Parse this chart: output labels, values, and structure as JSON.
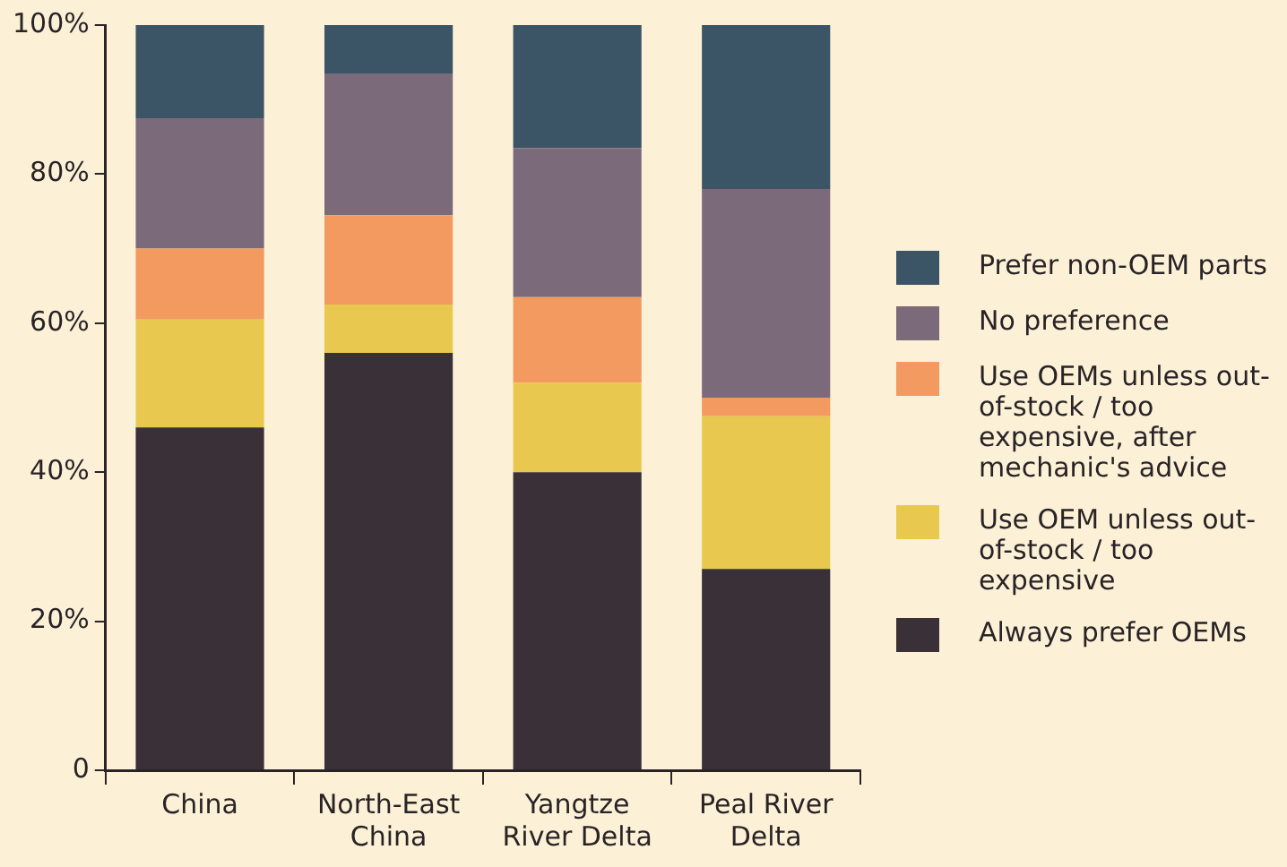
{
  "chart_data": {
    "type": "bar",
    "stacked": true,
    "categories": [
      "China",
      "North-East China",
      "Yangtze River Delta",
      "Peal River Delta"
    ],
    "series": [
      {
        "name": "Always prefer OEMs",
        "color": "#3a3038",
        "values": [
          46,
          56,
          40,
          27
        ]
      },
      {
        "name": "Use OEM unless out-of-stock / too expensive",
        "color": "#e8c84f",
        "values": [
          14.5,
          6.5,
          12,
          20.5
        ]
      },
      {
        "name": "Use OEMs unless out-of-stock / too expensive, after mechanic's advice",
        "color": "#f29a60",
        "values": [
          9.5,
          12,
          11.5,
          2.5
        ]
      },
      {
        "name": "No preference",
        "color": "#7b6b7a",
        "values": [
          17.5,
          19,
          20,
          28
        ]
      },
      {
        "name": "Prefer non-OEM parts",
        "color": "#3c5566",
        "values": [
          12.5,
          6.5,
          16.5,
          22
        ]
      }
    ],
    "ylim": [
      0,
      100
    ],
    "yticks": [
      0,
      {
        "value": 20,
        "label": "20%"
      },
      {
        "value": 40,
        "label": "40%"
      },
      {
        "value": 60,
        "label": "60%"
      },
      {
        "value": 80,
        "label": "80%"
      },
      {
        "value": 100,
        "label": "100%"
      }
    ],
    "grid": false,
    "legend": "right"
  }
}
